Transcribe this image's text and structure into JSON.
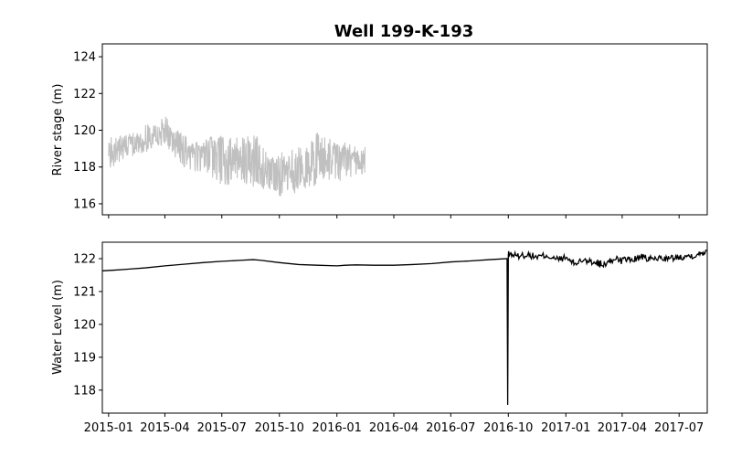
{
  "chart_data": [
    {
      "type": "line",
      "title": "Well 199-K-193",
      "xlabel": "",
      "ylabel": "River stage (m)",
      "ylim": [
        115.4,
        124.7
      ],
      "xlim": [
        "2014-12-22",
        "2017-08-15"
      ],
      "yticks": [
        116,
        118,
        120,
        122,
        124
      ],
      "grid": false,
      "series": [
        {
          "color": "#c0c0c0",
          "x": [
            "2015-01-01",
            "2015-01-15",
            "2015-02-01",
            "2015-02-15",
            "2015-03-01",
            "2015-03-15",
            "2015-04-01",
            "2015-04-15",
            "2015-05-01",
            "2015-05-15",
            "2015-06-01",
            "2015-06-15",
            "2015-07-01",
            "2015-07-15",
            "2015-08-01",
            "2015-08-15",
            "2015-09-01",
            "2015-09-15",
            "2015-10-01",
            "2015-10-15",
            "2015-11-01",
            "2015-11-15",
            "2015-12-01",
            "2015-12-15",
            "2016-01-01",
            "2016-01-15",
            "2016-02-01",
            "2016-02-15"
          ],
          "y": [
            118.8,
            119.0,
            119.2,
            119.3,
            119.6,
            119.8,
            120.0,
            119.5,
            119.3,
            118.6,
            118.8,
            119.1,
            118.6,
            118.3,
            118.4,
            118.6,
            117.6,
            117.7,
            117.7,
            117.7,
            117.9,
            117.7,
            118.5,
            118.5,
            118.5,
            118.4,
            118.3,
            118.4
          ],
          "range_low": [
            117.8,
            118.2,
            118.5,
            118.5,
            118.8,
            119.0,
            119.2,
            118.6,
            118.0,
            117.6,
            117.8,
            117.3,
            117.0,
            117.0,
            117.2,
            116.9,
            116.6,
            116.5,
            116.4,
            116.5,
            116.6,
            116.8,
            117.0,
            117.2,
            117.0,
            117.3,
            117.6,
            117.5
          ],
          "range_high": [
            119.6,
            119.7,
            119.8,
            119.9,
            120.3,
            120.6,
            120.8,
            120.2,
            119.8,
            119.3,
            119.4,
            119.7,
            119.8,
            119.6,
            119.6,
            120.0,
            119.5,
            118.6,
            118.8,
            118.9,
            119.1,
            119.2,
            120.1,
            119.9,
            119.3,
            119.4,
            119.1,
            119.4
          ]
        }
      ]
    },
    {
      "type": "line",
      "title": "",
      "xlabel": "",
      "ylabel": "Water Level (m)",
      "ylim": [
        117.3,
        122.5
      ],
      "xlim": [
        "2014-12-22",
        "2017-08-15"
      ],
      "yticks": [
        118,
        119,
        120,
        121,
        122
      ],
      "xticks": [
        "2015-01",
        "2015-04",
        "2015-07",
        "2015-10",
        "2016-01",
        "2016-04",
        "2016-07",
        "2016-10",
        "2017-01",
        "2017-04",
        "2017-07"
      ],
      "grid": false,
      "series": [
        {
          "color": "#000000",
          "x": [
            "2014-12-22",
            "2015-01-10",
            "2015-02-01",
            "2015-03-01",
            "2015-04-01",
            "2015-05-01",
            "2015-06-01",
            "2015-07-01",
            "2015-08-01",
            "2015-08-20",
            "2015-09-01",
            "2015-10-01",
            "2015-11-01",
            "2015-12-01",
            "2016-01-01",
            "2016-01-15",
            "2016-02-01",
            "2016-03-01",
            "2016-04-01",
            "2016-05-01",
            "2016-06-01",
            "2016-07-01",
            "2016-08-01",
            "2016-09-01",
            "2016-09-29",
            "2016-09-30",
            "2016-10-01",
            "2016-10-02",
            "2016-10-15",
            "2016-11-01",
            "2016-11-15",
            "2016-12-01",
            "2016-12-15",
            "2017-01-01",
            "2017-01-15",
            "2017-02-01",
            "2017-02-15",
            "2017-03-01",
            "2017-03-15",
            "2017-04-01",
            "2017-04-15",
            "2017-05-01",
            "2017-05-15",
            "2017-06-01",
            "2017-06-15",
            "2017-07-01",
            "2017-07-15",
            "2017-08-01",
            "2017-08-15"
          ],
          "y": [
            121.63,
            121.65,
            121.68,
            121.72,
            121.78,
            121.83,
            121.88,
            121.92,
            121.95,
            121.97,
            121.95,
            121.88,
            121.82,
            121.8,
            121.78,
            121.8,
            121.81,
            121.8,
            121.8,
            121.82,
            121.85,
            121.9,
            121.93,
            121.97,
            122.0,
            117.55,
            122.1,
            122.15,
            122.08,
            122.12,
            122.05,
            122.1,
            121.98,
            122.02,
            121.85,
            122.0,
            121.9,
            121.78,
            121.95,
            122.0,
            121.95,
            122.05,
            121.98,
            122.02,
            122.0,
            122.05,
            122.08,
            122.12,
            122.25
          ]
        }
      ]
    }
  ]
}
